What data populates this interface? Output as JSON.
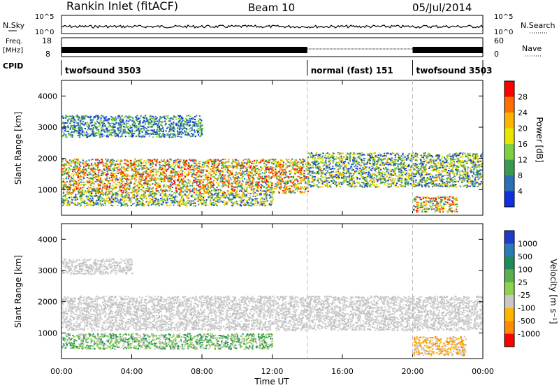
{
  "header": {
    "station": "Rankin Inlet (fitACF)",
    "beam": "Beam 10",
    "date": "05/Jul/2014"
  },
  "top_panels": {
    "nsky_label": "N.Sky",
    "nsky_ticks": [
      "10^5",
      "10^0"
    ],
    "nsearch_label": "N.Search",
    "nsearch_ticks": [
      "10^5",
      "10^0"
    ],
    "freq_label": "Freq.",
    "freq_unit": "[MHz]",
    "freq_ticks": [
      "18",
      "8"
    ],
    "nave_label": "Nave",
    "nave_ticks": [
      "60",
      "0"
    ],
    "cpid_label": "CPID",
    "cpid_segments": [
      {
        "label": "twofsound 3503",
        "start_hour": 0,
        "end_hour": 14
      },
      {
        "label": "normal (fast) 151",
        "start_hour": 14,
        "end_hour": 20
      },
      {
        "label": "twofsound 3503",
        "start_hour": 20,
        "end_hour": 24
      }
    ]
  },
  "chart_data": [
    {
      "type": "heatmap",
      "title": "Power",
      "xlabel": "Time UT",
      "ylabel": "Slant Range [km]",
      "x_ticks": [
        "00:00",
        "04:00",
        "08:00",
        "12:00",
        "16:00",
        "20:00",
        "00:00"
      ],
      "xlim_hours": [
        0,
        24
      ],
      "y_ticks": [
        1000,
        2000,
        3000,
        4000
      ],
      "ylim": [
        180,
        4500
      ],
      "colorbar": {
        "label": "Power [dB]",
        "ticks": [
          "28",
          "24",
          "20",
          "16",
          "12",
          "8",
          "4"
        ],
        "colors": [
          "#ff0000",
          "#ff6e00",
          "#ffb400",
          "#e6e600",
          "#7fd040",
          "#3a9a50",
          "#2c6fb5",
          "#1030e0"
        ]
      },
      "echo_regions": [
        {
          "t0": 0,
          "t1": 14,
          "r0": 900,
          "r1": 2000,
          "level": "high"
        },
        {
          "t0": 0,
          "t1": 12,
          "r0": 500,
          "r1": 900,
          "level": "mid"
        },
        {
          "t0": 0,
          "t1": 8,
          "r0": 2700,
          "r1": 3400,
          "level": "low"
        },
        {
          "t0": 14,
          "t1": 24,
          "r0": 1100,
          "r1": 2200,
          "level": "mid"
        },
        {
          "t0": 20,
          "t1": 22.5,
          "r0": 300,
          "r1": 800,
          "level": "high"
        }
      ]
    },
    {
      "type": "heatmap",
      "title": "Velocity",
      "xlabel": "Time UT",
      "ylabel": "Slant Range [km]",
      "x_ticks": [
        "00:00",
        "04:00",
        "08:00",
        "12:00",
        "16:00",
        "20:00",
        "00:00"
      ],
      "xlim_hours": [
        0,
        24
      ],
      "y_ticks": [
        1000,
        2000,
        3000,
        4000
      ],
      "ylim": [
        180,
        4500
      ],
      "colorbar": {
        "label": "Velocity [m s⁻¹]",
        "ticks": [
          "1000",
          "500",
          "100",
          "25",
          "-25",
          "-100",
          "-500",
          "-1000"
        ],
        "colors": [
          "#1e3cc8",
          "#2c7ab8",
          "#1f8a5a",
          "#5ab04a",
          "#8fd050",
          "#c8c8c8",
          "#ffb400",
          "#ff8c00",
          "#ff0000"
        ]
      },
      "echo_regions": [
        {
          "t0": 0,
          "t1": 24,
          "r0": 1100,
          "r1": 2200,
          "level": "ground"
        },
        {
          "t0": 0,
          "t1": 4,
          "r0": 2900,
          "r1": 3400,
          "level": "ground"
        },
        {
          "t0": 0,
          "t1": 12,
          "r0": 500,
          "r1": 1000,
          "level": "green"
        },
        {
          "t0": 20,
          "t1": 23,
          "r0": 300,
          "r1": 900,
          "level": "orange"
        }
      ]
    }
  ]
}
